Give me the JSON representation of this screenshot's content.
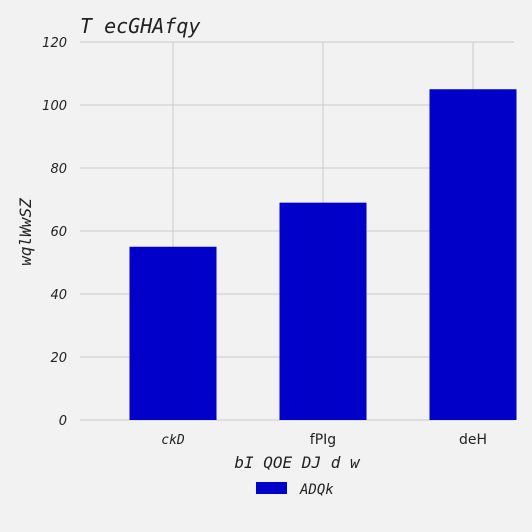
{
  "chart_data": {
    "type": "bar",
    "title": "T ecGHAfqy",
    "xlabel": "bI QOE DJ d w",
    "ylabel": "wqlWwSZ",
    "categories": [
      "ckD",
      "fPIg",
      "deH"
    ],
    "series": [
      {
        "name": "ADQk",
        "values": [
          55,
          69,
          105
        ],
        "color": "#0000c8"
      }
    ],
    "ylim": [
      0,
      120
    ],
    "yticks": [
      0,
      20,
      40,
      60,
      80,
      100,
      120
    ],
    "grid": true,
    "legend_position": "bottom-center",
    "background_color": "#f2f2f2"
  }
}
